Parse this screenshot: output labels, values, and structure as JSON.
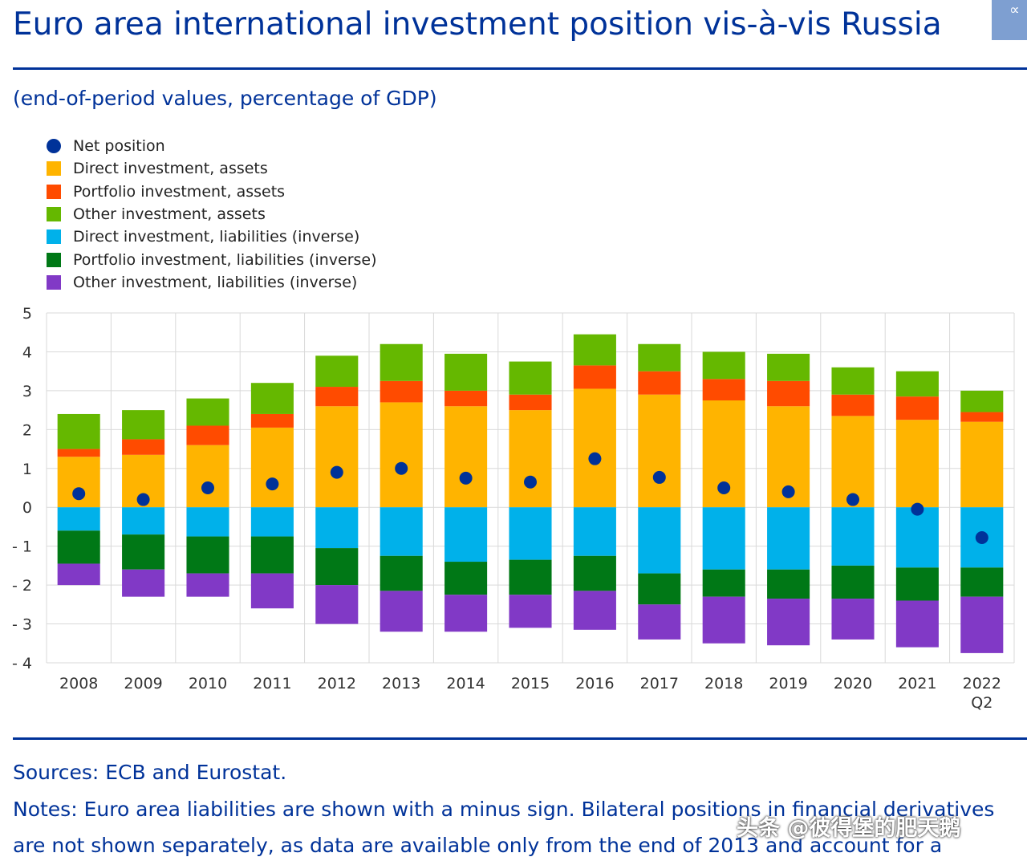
{
  "header": {
    "title": "Euro area international investment position vis-à-vis Russia",
    "subtitle": "(end-of-period values, percentage of GDP)",
    "share_icon": "share-icon"
  },
  "chart_data": {
    "type": "bar",
    "stacked": true,
    "title": "",
    "xlabel": "",
    "ylabel": "",
    "ylim": [
      -4,
      5
    ],
    "yticks": [
      5,
      4,
      3,
      2,
      1,
      0,
      -1,
      -2,
      -3,
      -4
    ],
    "grid": true,
    "legend_position": "top-left",
    "categories": [
      "2008",
      "2009",
      "2010",
      "2011",
      "2012",
      "2013",
      "2014",
      "2015",
      "2016",
      "2017",
      "2018",
      "2019",
      "2020",
      "2021",
      "2022 Q2"
    ],
    "series": [
      {
        "name": "Direct investment, assets",
        "kind": "bar",
        "color": "#ffb400",
        "values": [
          1.3,
          1.35,
          1.6,
          2.05,
          2.6,
          2.7,
          2.6,
          2.5,
          3.05,
          2.9,
          2.75,
          2.6,
          2.35,
          2.25,
          2.2
        ]
      },
      {
        "name": "Portfolio investment, assets",
        "kind": "bar",
        "color": "#ff4b00",
        "values": [
          0.2,
          0.4,
          0.5,
          0.35,
          0.5,
          0.55,
          0.4,
          0.4,
          0.6,
          0.6,
          0.55,
          0.65,
          0.55,
          0.6,
          0.25
        ]
      },
      {
        "name": "Other investment, assets",
        "kind": "bar",
        "color": "#65b800",
        "values": [
          0.9,
          0.75,
          0.7,
          0.8,
          0.8,
          0.95,
          0.95,
          0.85,
          0.8,
          0.7,
          0.7,
          0.7,
          0.7,
          0.65,
          0.55
        ]
      },
      {
        "name": "Direct investment, liabilities (inverse)",
        "kind": "bar",
        "color": "#00b1ea",
        "values": [
          -0.6,
          -0.7,
          -0.75,
          -0.75,
          -1.05,
          -1.25,
          -1.4,
          -1.35,
          -1.25,
          -1.7,
          -1.6,
          -1.6,
          -1.5,
          -1.55,
          -1.55
        ]
      },
      {
        "name": "Portfolio investment, liabilities (inverse)",
        "kind": "bar",
        "color": "#007816",
        "values": [
          -0.85,
          -0.9,
          -0.95,
          -0.95,
          -0.95,
          -0.9,
          -0.85,
          -0.9,
          -0.9,
          -0.8,
          -0.7,
          -0.75,
          -0.85,
          -0.85,
          -0.75
        ]
      },
      {
        "name": "Other investment, liabilities (inverse)",
        "kind": "bar",
        "color": "#8139c6",
        "values": [
          -0.55,
          -0.7,
          -0.6,
          -0.9,
          -1.0,
          -1.05,
          -0.95,
          -0.85,
          -1.0,
          -0.9,
          -1.2,
          -1.2,
          -1.05,
          -1.2,
          -1.45
        ]
      },
      {
        "name": "Net position",
        "kind": "point",
        "color": "#003299",
        "values": [
          0.35,
          0.2,
          0.5,
          0.6,
          0.9,
          1.0,
          0.75,
          0.65,
          1.25,
          0.77,
          0.5,
          0.4,
          0.2,
          -0.05,
          -0.78
        ]
      }
    ]
  },
  "footer": {
    "sources": "Sources: ECB and Eurostat.",
    "notes_line1": "Notes: Euro area liabilities are shown with a minus sign. Bilateral positions in financial derivatives",
    "notes_line2": "are not shown separately, as data are available only from the end of 2013 and account for a"
  },
  "watermark": "头条 @彼得堡的肥天鹅"
}
